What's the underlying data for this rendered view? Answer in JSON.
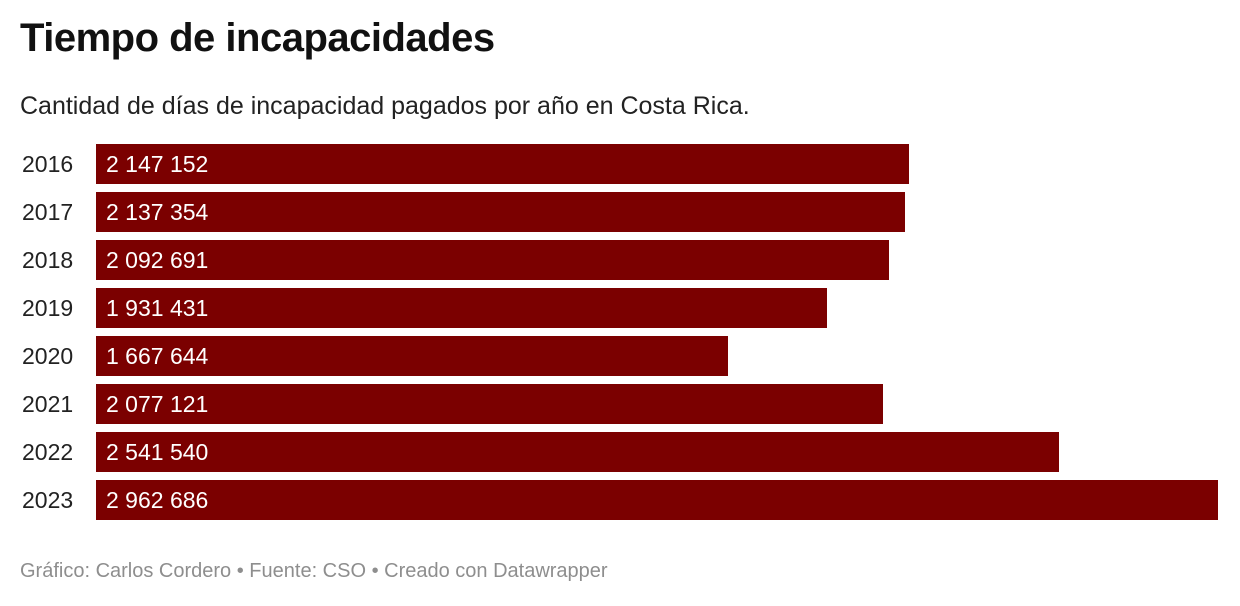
{
  "colors": {
    "bar": "#7b0000",
    "value_text": "#ffffff"
  },
  "chart_data": {
    "type": "bar",
    "orientation": "horizontal",
    "title": "Tiempo de incapacidades",
    "subtitle": "Cantidad de días de incapacidad pagados por año en Costa Rica.",
    "categories": [
      "2016",
      "2017",
      "2018",
      "2019",
      "2020",
      "2021",
      "2022",
      "2023"
    ],
    "values": [
      2147152,
      2137354,
      2092691,
      1931431,
      1667644,
      2077121,
      2541540,
      2962686
    ],
    "value_labels": [
      "2 147 152",
      "2 137 354",
      "2 092 691",
      "1 931 431",
      "1 667 644",
      "2 077 121",
      "2 541 540",
      "2 962 686"
    ],
    "xlim": [
      0,
      2962686
    ],
    "grid": false,
    "legend": "none"
  },
  "footer": {
    "text": "Gráfico: Carlos Cordero • Fuente: CSO • Creado con Datawrapper"
  }
}
